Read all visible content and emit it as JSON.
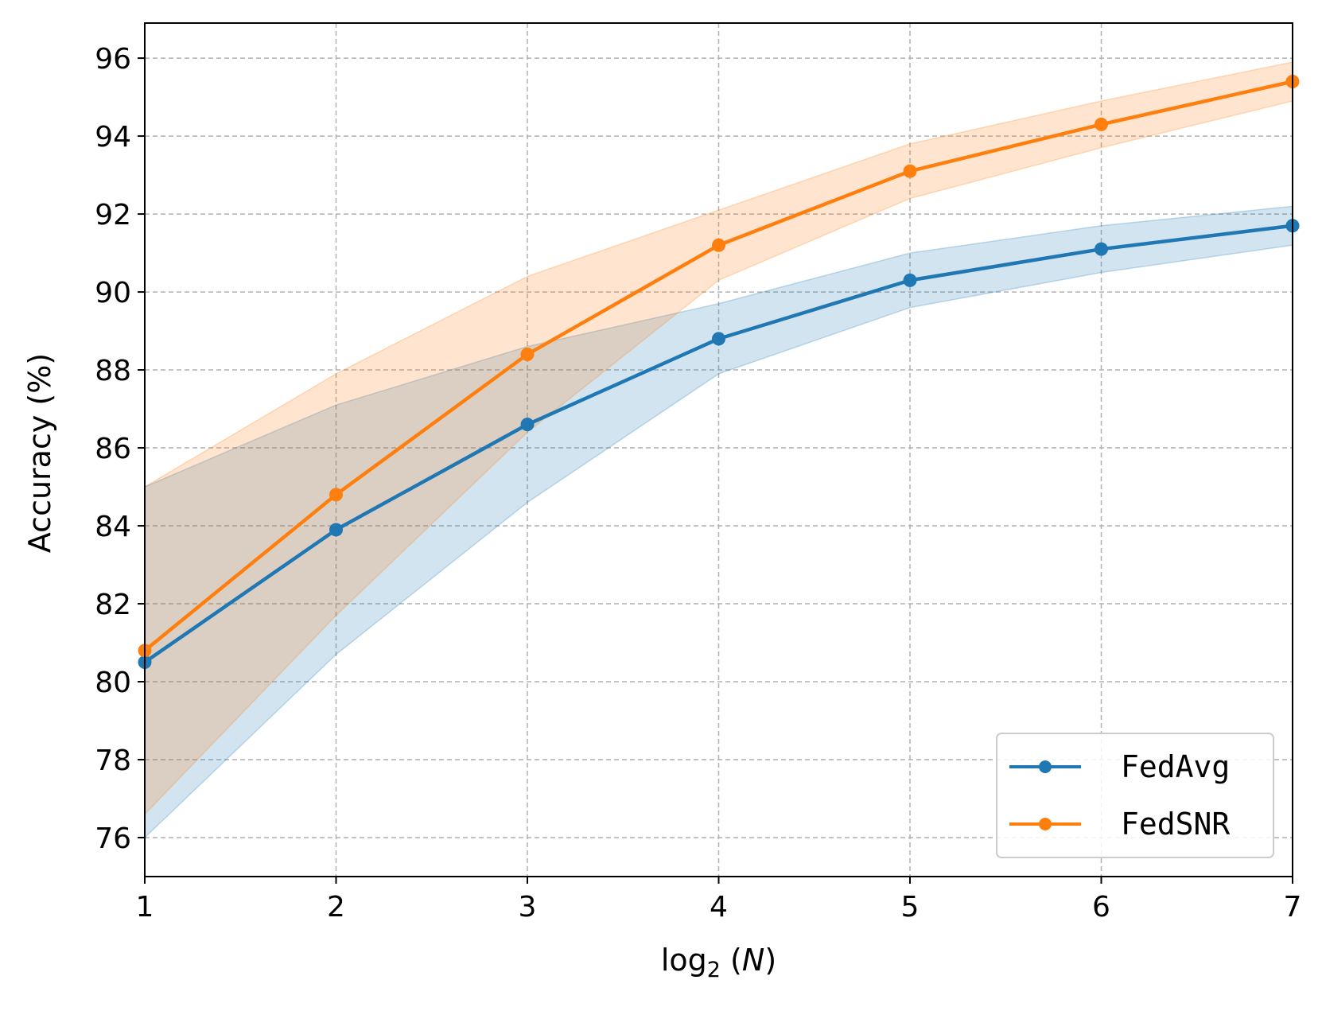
{
  "chart_data": {
    "type": "line",
    "title": "",
    "xlabel": "log",
    "xlabel_sub": "2",
    "xlabel_arg": "N",
    "ylabel": "Accuracy (%)",
    "xlim": [
      1,
      7
    ],
    "ylim": [
      75,
      96.9
    ],
    "xticks": [
      "1",
      "2",
      "3",
      "4",
      "5",
      "6",
      "7"
    ],
    "yticks": [
      "76",
      "78",
      "80",
      "82",
      "84",
      "86",
      "88",
      "90",
      "92",
      "94",
      "96"
    ],
    "grid": true,
    "legend_position": "lower-right",
    "x": [
      1,
      2,
      3,
      4,
      5,
      6,
      7
    ],
    "series": [
      {
        "name": "FedAvg",
        "color": "#1f77b4",
        "values": [
          80.5,
          83.9,
          86.6,
          88.8,
          90.3,
          91.1,
          91.7
        ],
        "lower": [
          76.0,
          80.7,
          84.6,
          87.9,
          89.6,
          90.5,
          91.2
        ],
        "upper": [
          85.0,
          87.1,
          88.6,
          89.7,
          91.0,
          91.7,
          92.2
        ]
      },
      {
        "name": "FedSNR",
        "color": "#ff7f0e",
        "values": [
          80.8,
          84.8,
          88.4,
          91.2,
          93.1,
          94.3,
          95.4
        ],
        "lower": [
          76.6,
          81.7,
          86.4,
          90.3,
          92.4,
          93.7,
          94.9
        ],
        "upper": [
          85.0,
          87.9,
          90.4,
          92.1,
          93.8,
          94.9,
          95.9
        ]
      }
    ]
  }
}
